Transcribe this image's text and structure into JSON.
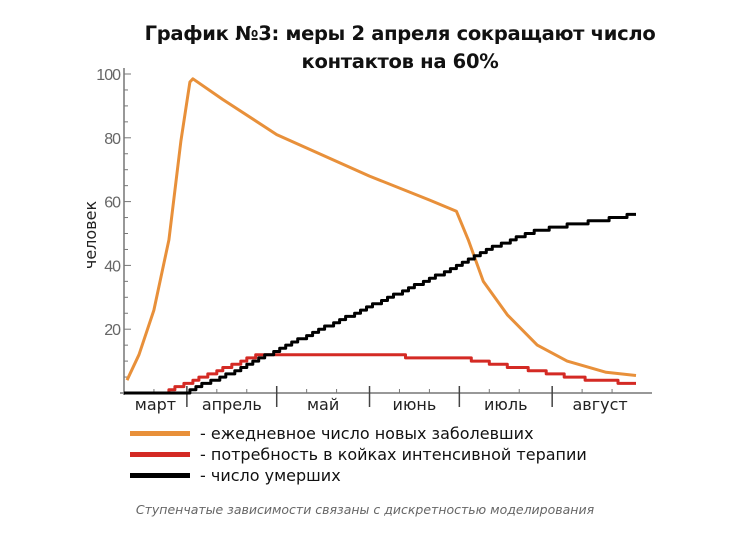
{
  "chart_data": {
    "type": "line",
    "title_line1": "График №3: меры 2 апреля сокращают число",
    "title_line2": "контактов на 60%",
    "ylabel": "человек",
    "xlabel": "",
    "ylim": [
      0,
      100
    ],
    "yticks": [
      20,
      40,
      60,
      80,
      100
    ],
    "xlim": [
      "03-11",
      "08-31"
    ],
    "months": [
      {
        "label": "март",
        "start": "03-11",
        "end": "04-01"
      },
      {
        "label": "апрель",
        "start": "04-01",
        "end": "05-01"
      },
      {
        "label": "май",
        "start": "05-01",
        "end": "06-01"
      },
      {
        "label": "июнь",
        "start": "06-01",
        "end": "07-01"
      },
      {
        "label": "июль",
        "start": "07-01",
        "end": "08-01"
      },
      {
        "label": "август",
        "start": "08-01",
        "end": "08-31"
      }
    ],
    "grid": false,
    "legend_position": "bottom",
    "series": [
      {
        "name": "- ежедневное число новых заболевших",
        "color": "#E8903A",
        "step": false,
        "points": [
          [
            "03-12",
            4
          ],
          [
            "03-16",
            12
          ],
          [
            "03-21",
            26
          ],
          [
            "03-26",
            48
          ],
          [
            "03-30",
            79
          ],
          [
            "04-02",
            97.5
          ],
          [
            "04-03",
            98.5
          ],
          [
            "04-13",
            92
          ],
          [
            "05-01",
            81
          ],
          [
            "06-01",
            68
          ],
          [
            "06-21",
            60.5
          ],
          [
            "06-30",
            57
          ],
          [
            "07-04",
            48
          ],
          [
            "07-09",
            35
          ],
          [
            "07-17",
            24.5
          ],
          [
            "07-27",
            15
          ],
          [
            "08-06",
            10
          ],
          [
            "08-19",
            6.5
          ],
          [
            "08-29",
            5.5
          ]
        ]
      },
      {
        "name": "- потребность в койках интенсивной терапии",
        "color": "#D42A24",
        "step": true,
        "points": [
          [
            "03-11",
            0
          ],
          [
            "03-24",
            0
          ],
          [
            "04-25",
            12
          ],
          [
            "06-12",
            12
          ],
          [
            "06-13",
            11
          ],
          [
            "07-01",
            11
          ],
          [
            "07-20",
            8
          ],
          [
            "08-01",
            6
          ],
          [
            "08-15",
            4
          ],
          [
            "08-29",
            3
          ]
        ]
      },
      {
        "name": "- число умерших",
        "color": "#000000",
        "step": true,
        "points": [
          [
            "03-11",
            0
          ],
          [
            "04-01",
            0
          ],
          [
            "04-02",
            1
          ],
          [
            "04-15",
            6
          ],
          [
            "05-08",
            16.6
          ],
          [
            "06-10",
            31
          ],
          [
            "07-01",
            40
          ],
          [
            "07-13",
            46
          ],
          [
            "07-27",
            51
          ],
          [
            "08-29",
            56
          ]
        ]
      }
    ]
  },
  "caption": "Ступенчатые зависимости связаны с дискретностью моделирования"
}
